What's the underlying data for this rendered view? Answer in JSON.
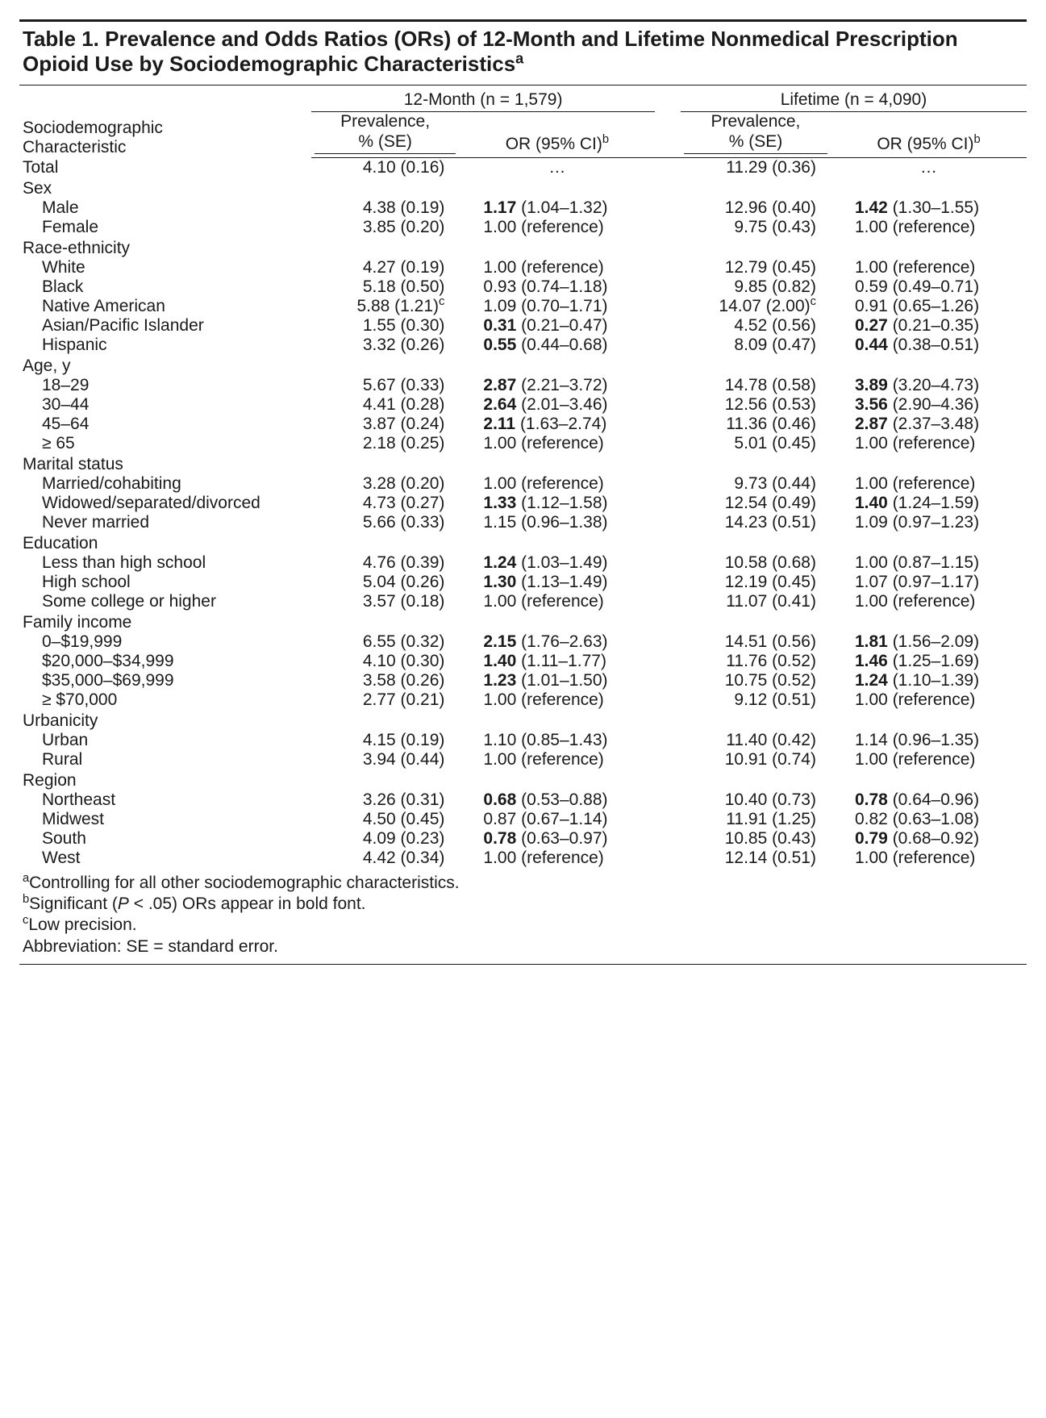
{
  "title_html": "Table 1. Prevalence and Odds Ratios (ORs) of 12-Month and Lifetime Nonmedical Prescription Opioid Use by Sociodemographic Characteristics<sup>a</sup>",
  "spanners": {
    "month": "12-Month (n = 1,579)",
    "life": "Lifetime (n = 4,090)"
  },
  "col_labels": {
    "rowhead_html": "Sociodemographic<br>Characteristic",
    "prev_html": "Prevalence,<br>% (SE)",
    "or_html": "OR (95% CI)<sup>b</sup>"
  },
  "rows": [
    {
      "type": "data",
      "label": "Total",
      "indent": 0,
      "m_prev": "4.10 (0.16)",
      "m_or_bold": "",
      "m_or": "…",
      "l_prev": "11.29 (0.36)",
      "l_or_bold": "",
      "l_or": "…",
      "or_center": true
    },
    {
      "type": "head",
      "label": "Sex"
    },
    {
      "type": "data",
      "label": "Male",
      "indent": 1,
      "m_prev": "4.38 (0.19)",
      "m_or_bold": "1.17",
      "m_or": " (1.04–1.32)",
      "l_prev": "12.96 (0.40)",
      "l_or_bold": "1.42",
      "l_or": " (1.30–1.55)"
    },
    {
      "type": "data",
      "label": "Female",
      "indent": 1,
      "m_prev": "3.85 (0.20)",
      "m_or_bold": "",
      "m_or": "1.00 (reference)",
      "l_prev": "9.75 (0.43)",
      "l_or_bold": "",
      "l_or": "1.00 (reference)"
    },
    {
      "type": "head",
      "label": "Race-ethnicity"
    },
    {
      "type": "data",
      "label": "White",
      "indent": 1,
      "m_prev": "4.27 (0.19)",
      "m_or_bold": "",
      "m_or": "1.00 (reference)",
      "l_prev": "12.79 (0.45)",
      "l_or_bold": "",
      "l_or": "1.00 (reference)"
    },
    {
      "type": "data",
      "label": "Black",
      "indent": 1,
      "m_prev": "5.18 (0.50)",
      "m_or_bold": "",
      "m_or": "0.93 (0.74–1.18)",
      "l_prev": "9.85 (0.82)",
      "l_or_bold": "",
      "l_or": "0.59 (0.49–0.71)"
    },
    {
      "type": "data",
      "label": "Native American",
      "indent": 1,
      "m_prev_html": "5.88 (1.21)<sup>c</sup>",
      "m_or_bold": "",
      "m_or": "1.09 (0.70–1.71)",
      "l_prev_html": "14.07 (2.00)<sup>c</sup>",
      "l_or_bold": "",
      "l_or": "0.91 (0.65–1.26)"
    },
    {
      "type": "data",
      "label": "Asian/Pacific Islander",
      "indent": 1,
      "m_prev": "1.55 (0.30)",
      "m_or_bold": "0.31",
      "m_or": " (0.21–0.47)",
      "l_prev": "4.52 (0.56)",
      "l_or_bold": "0.27",
      "l_or": " (0.21–0.35)"
    },
    {
      "type": "data",
      "label": "Hispanic",
      "indent": 1,
      "m_prev": "3.32 (0.26)",
      "m_or_bold": "0.55",
      "m_or": " (0.44–0.68)",
      "l_prev": "8.09 (0.47)",
      "l_or_bold": "0.44",
      "l_or": " (0.38–0.51)"
    },
    {
      "type": "head",
      "label": "Age, y"
    },
    {
      "type": "data",
      "label": "18–29",
      "indent": 1,
      "m_prev": "5.67 (0.33)",
      "m_or_bold": "2.87",
      "m_or": " (2.21–3.72)",
      "l_prev": "14.78 (0.58)",
      "l_or_bold": "3.89",
      "l_or": " (3.20–4.73)"
    },
    {
      "type": "data",
      "label": "30–44",
      "indent": 1,
      "m_prev": "4.41 (0.28)",
      "m_or_bold": "2.64",
      "m_or": " (2.01–3.46)",
      "l_prev": "12.56 (0.53)",
      "l_or_bold": "3.56",
      "l_or": " (2.90–4.36)"
    },
    {
      "type": "data",
      "label": "45–64",
      "indent": 1,
      "m_prev": "3.87 (0.24)",
      "m_or_bold": "2.11",
      "m_or": " (1.63–2.74)",
      "l_prev": "11.36 (0.46)",
      "l_or_bold": "2.87",
      "l_or": " (2.37–3.48)"
    },
    {
      "type": "data",
      "label": "≥ 65",
      "indent": 1,
      "m_prev": "2.18 (0.25)",
      "m_or_bold": "",
      "m_or": "1.00 (reference)",
      "l_prev": "5.01 (0.45)",
      "l_or_bold": "",
      "l_or": "1.00 (reference)"
    },
    {
      "type": "head",
      "label": "Marital status"
    },
    {
      "type": "data",
      "label": "Married/cohabiting",
      "indent": 1,
      "m_prev": "3.28 (0.20)",
      "m_or_bold": "",
      "m_or": "1.00 (reference)",
      "l_prev": "9.73 (0.44)",
      "l_or_bold": "",
      "l_or": "1.00 (reference)"
    },
    {
      "type": "data",
      "label": "Widowed/separated/divorced",
      "indent": 1,
      "m_prev": "4.73 (0.27)",
      "m_or_bold": "1.33",
      "m_or": " (1.12–1.58)",
      "l_prev": "12.54 (0.49)",
      "l_or_bold": "1.40",
      "l_or": " (1.24–1.59)"
    },
    {
      "type": "data",
      "label": "Never married",
      "indent": 1,
      "m_prev": "5.66 (0.33)",
      "m_or_bold": "",
      "m_or": "1.15 (0.96–1.38)",
      "l_prev": "14.23 (0.51)",
      "l_or_bold": "",
      "l_or": "1.09 (0.97–1.23)"
    },
    {
      "type": "head",
      "label": "Education"
    },
    {
      "type": "data",
      "label": "Less than high school",
      "indent": 1,
      "m_prev": "4.76 (0.39)",
      "m_or_bold": "1.24",
      "m_or": " (1.03–1.49)",
      "l_prev": "10.58 (0.68)",
      "l_or_bold": "",
      "l_or": "1.00 (0.87–1.15)"
    },
    {
      "type": "data",
      "label": "High school",
      "indent": 1,
      "m_prev": "5.04 (0.26)",
      "m_or_bold": "1.30",
      "m_or": " (1.13–1.49)",
      "l_prev": "12.19 (0.45)",
      "l_or_bold": "",
      "l_or": "1.07 (0.97–1.17)"
    },
    {
      "type": "data",
      "label": "Some college or higher",
      "indent": 1,
      "m_prev": "3.57 (0.18)",
      "m_or_bold": "",
      "m_or": "1.00 (reference)",
      "l_prev": "11.07 (0.41)",
      "l_or_bold": "",
      "l_or": "1.00 (reference)"
    },
    {
      "type": "head",
      "label": "Family income"
    },
    {
      "type": "data",
      "label": "0–$19,999",
      "indent": 1,
      "m_prev": "6.55 (0.32)",
      "m_or_bold": "2.15",
      "m_or": " (1.76–2.63)",
      "l_prev": "14.51 (0.56)",
      "l_or_bold": "1.81",
      "l_or": " (1.56–2.09)"
    },
    {
      "type": "data",
      "label": "$20,000–$34,999",
      "indent": 1,
      "m_prev": "4.10 (0.30)",
      "m_or_bold": "1.40",
      "m_or": " (1.11–1.77)",
      "l_prev": "11.76 (0.52)",
      "l_or_bold": "1.46",
      "l_or": " (1.25–1.69)"
    },
    {
      "type": "data",
      "label": "$35,000–$69,999",
      "indent": 1,
      "m_prev": "3.58 (0.26)",
      "m_or_bold": "1.23",
      "m_or": " (1.01–1.50)",
      "l_prev": "10.75 (0.52)",
      "l_or_bold": "1.24",
      "l_or": " (1.10–1.39)"
    },
    {
      "type": "data",
      "label": "≥ $70,000",
      "indent": 1,
      "m_prev": "2.77 (0.21)",
      "m_or_bold": "",
      "m_or": "1.00 (reference)",
      "l_prev": "9.12 (0.51)",
      "l_or_bold": "",
      "l_or": "1.00 (reference)"
    },
    {
      "type": "head",
      "label": "Urbanicity"
    },
    {
      "type": "data",
      "label": "Urban",
      "indent": 1,
      "m_prev": "4.15 (0.19)",
      "m_or_bold": "",
      "m_or": "1.10 (0.85–1.43)",
      "l_prev": "11.40 (0.42)",
      "l_or_bold": "",
      "l_or": "1.14 (0.96–1.35)"
    },
    {
      "type": "data",
      "label": "Rural",
      "indent": 1,
      "m_prev": "3.94 (0.44)",
      "m_or_bold": "",
      "m_or": "1.00 (reference)",
      "l_prev": "10.91 (0.74)",
      "l_or_bold": "",
      "l_or": "1.00 (reference)"
    },
    {
      "type": "head",
      "label": "Region"
    },
    {
      "type": "data",
      "label": "Northeast",
      "indent": 1,
      "m_prev": "3.26 (0.31)",
      "m_or_bold": "0.68",
      "m_or": " (0.53–0.88)",
      "l_prev": "10.40 (0.73)",
      "l_or_bold": "0.78",
      "l_or": " (0.64–0.96)"
    },
    {
      "type": "data",
      "label": "Midwest",
      "indent": 1,
      "m_prev": "4.50 (0.45)",
      "m_or_bold": "",
      "m_or": "0.87 (0.67–1.14)",
      "l_prev": "11.91 (1.25)",
      "l_or_bold": "",
      "l_or": "0.82 (0.63–1.08)"
    },
    {
      "type": "data",
      "label": "South",
      "indent": 1,
      "m_prev": "4.09 (0.23)",
      "m_or_bold": "0.78",
      "m_or": " (0.63–0.97)",
      "l_prev": "10.85 (0.43)",
      "l_or_bold": "0.79",
      "l_or": " (0.68–0.92)"
    },
    {
      "type": "data",
      "label": "West",
      "indent": 1,
      "m_prev": "4.42 (0.34)",
      "m_or_bold": "",
      "m_or": "1.00 (reference)",
      "l_prev": "12.14 (0.51)",
      "l_or_bold": "",
      "l_or": "1.00 (reference)"
    }
  ],
  "footnotes": [
    "<sup>a</sup>Controlling for all other sociodemographic characteristics.",
    "<sup>b</sup>Significant (<i>P</i> < .05) ORs appear in bold font.",
    "<sup>c</sup>Low precision.",
    "Abbreviation: SE = standard error."
  ]
}
